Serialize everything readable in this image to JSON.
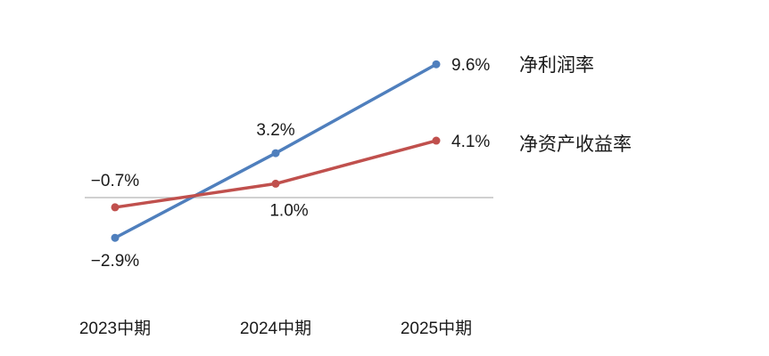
{
  "chart_data": {
    "type": "line",
    "categories": [
      "2023中期",
      "2024中期",
      "2025中期"
    ],
    "series": [
      {
        "name": "净利润率",
        "values": [
          -2.9,
          3.2,
          9.6
        ],
        "labels": [
          "−2.9%",
          "3.2%",
          "9.6%"
        ],
        "color": "#4f7fbd"
      },
      {
        "name": "净资产收益率",
        "values": [
          -0.7,
          1.0,
          4.1
        ],
        "labels": [
          "−0.7%",
          "1.0%",
          "4.1%"
        ],
        "color": "#c0504d"
      }
    ],
    "zero_line_color": "#b3b3b3",
    "legend": "right",
    "grid": false,
    "ylim": [
      -5,
      11
    ]
  }
}
